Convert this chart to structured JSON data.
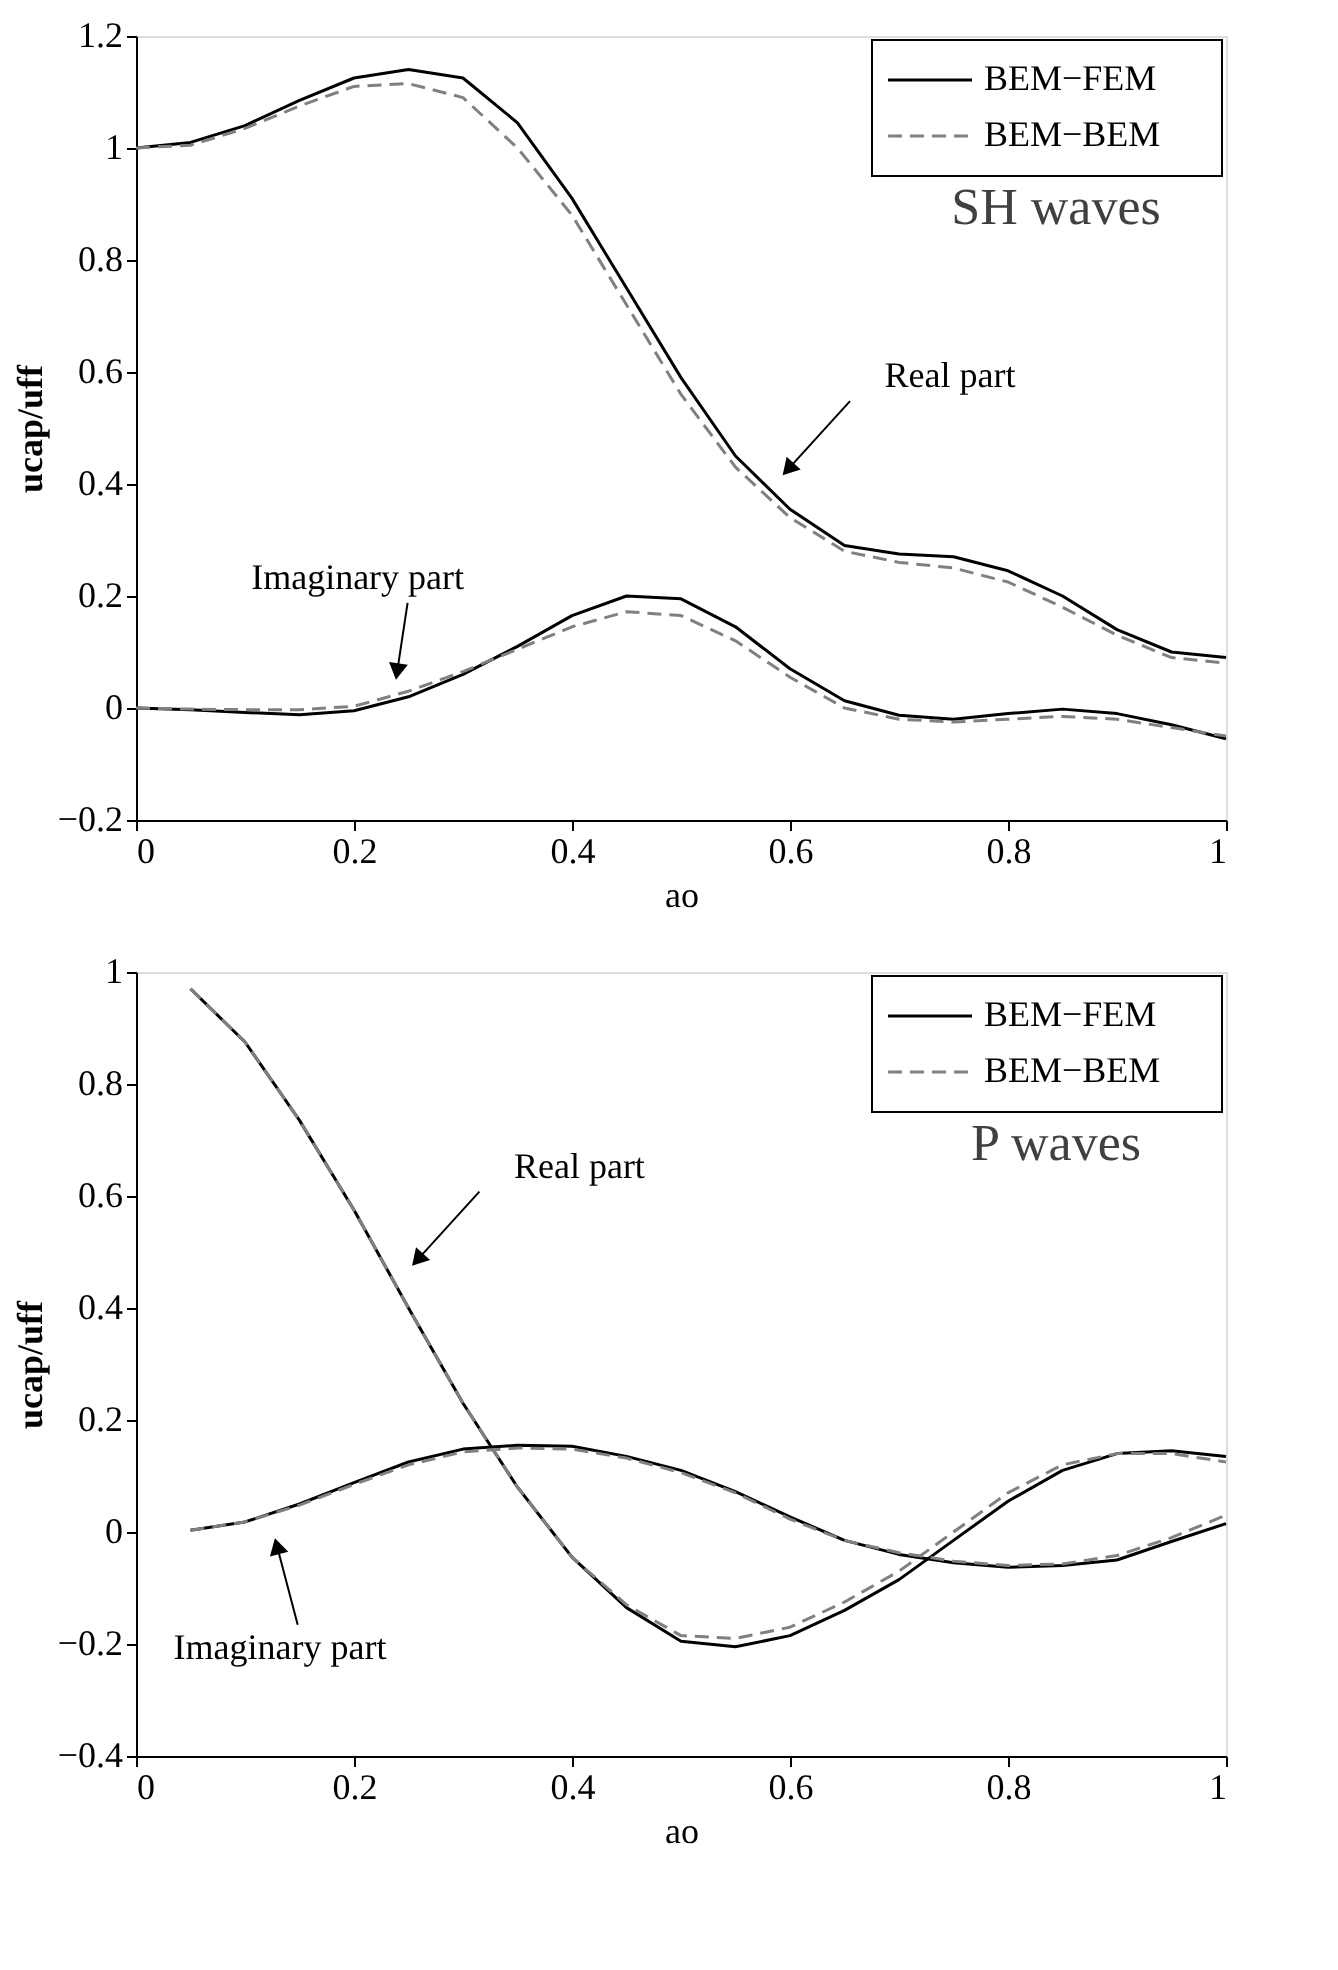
{
  "chart_data": [
    {
      "type": "line",
      "xlabel": "ao",
      "ylabel": "ucap/uff",
      "xlim": [
        0,
        1
      ],
      "ylim": [
        -0.2,
        1.2
      ],
      "xticks": [
        0,
        0.2,
        0.4,
        0.6,
        0.8,
        1
      ],
      "yticks": [
        -0.2,
        0,
        0.2,
        0.4,
        0.6,
        0.8,
        1,
        1.2
      ],
      "grid": false,
      "legend": "top right",
      "x": [
        0,
        0.05,
        0.1,
        0.15,
        0.2,
        0.25,
        0.3,
        0.35,
        0.4,
        0.45,
        0.5,
        0.55,
        0.6,
        0.65,
        0.7,
        0.75,
        0.8,
        0.85,
        0.9,
        0.95,
        1
      ],
      "series": [
        {
          "name": "BEM−FEM",
          "color": "#000000",
          "line_style": "solid",
          "values": [
            1.0,
            1.01,
            1.04,
            1.085,
            1.125,
            1.14,
            1.125,
            1.045,
            0.91,
            0.75,
            0.59,
            0.45,
            0.355,
            0.29,
            0.275,
            0.27,
            0.245,
            0.2,
            0.14,
            0.1,
            0.09
          ]
        },
        {
          "name": "BEM−BEM",
          "color": "#808080",
          "line_style": "dashed",
          "values": [
            1.0,
            1.005,
            1.035,
            1.075,
            1.11,
            1.115,
            1.09,
            1.0,
            0.88,
            0.72,
            0.56,
            0.43,
            0.34,
            0.28,
            0.26,
            0.25,
            0.225,
            0.18,
            0.13,
            0.09,
            0.08
          ]
        },
        {
          "color": "#000000",
          "line_style": "solid",
          "values": [
            0,
            -0.003,
            -0.008,
            -0.012,
            -0.005,
            0.02,
            0.06,
            0.11,
            0.165,
            0.2,
            0.195,
            0.145,
            0.07,
            0.013,
            -0.013,
            -0.02,
            -0.01,
            -0.002,
            -0.01,
            -0.03,
            -0.055
          ]
        },
        {
          "color": "#808080",
          "line_style": "dashed",
          "values": [
            0,
            -0.002,
            -0.003,
            -0.003,
            0.003,
            0.03,
            0.065,
            0.105,
            0.145,
            0.172,
            0.165,
            0.12,
            0.055,
            0.0,
            -0.02,
            -0.025,
            -0.02,
            -0.015,
            -0.02,
            -0.035,
            -0.05
          ]
        }
      ],
      "annotations": [
        {
          "text": "Real part",
          "x": 0.6,
          "y": 0.43
        },
        {
          "text": "Imaginary part",
          "x": 0.24,
          "y": 0.07
        },
        "SH waves"
      ]
    },
    {
      "type": "line",
      "xlabel": "ao",
      "ylabel": "ucap/uff",
      "xlim": [
        0,
        1
      ],
      "ylim": [
        -0.4,
        1
      ],
      "xticks": [
        0,
        0.2,
        0.4,
        0.6,
        0.8,
        1
      ],
      "yticks": [
        -0.4,
        -0.2,
        0,
        0.2,
        0.4,
        0.6,
        0.8,
        1
      ],
      "grid": false,
      "legend": "top right",
      "x": [
        0.05,
        0.1,
        0.15,
        0.2,
        0.25,
        0.3,
        0.35,
        0.4,
        0.45,
        0.5,
        0.55,
        0.6,
        0.65,
        0.7,
        0.75,
        0.8,
        0.85,
        0.9,
        0.95,
        1
      ],
      "series": [
        {
          "name": "BEM−FEM",
          "color": "#000000",
          "line_style": "solid",
          "values": [
            0.97,
            0.875,
            0.735,
            0.575,
            0.4,
            0.23,
            0.08,
            -0.045,
            -0.135,
            -0.195,
            -0.205,
            -0.185,
            -0.14,
            -0.085,
            -0.015,
            0.055,
            0.11,
            0.14,
            0.145,
            0.135
          ]
        },
        {
          "name": "BEM−BEM",
          "color": "#808080",
          "line_style": "dashed",
          "values": [
            0.97,
            0.875,
            0.735,
            0.575,
            0.4,
            0.23,
            0.08,
            -0.045,
            -0.13,
            -0.185,
            -0.19,
            -0.17,
            -0.125,
            -0.07,
            0.0,
            0.07,
            0.12,
            0.14,
            0.14,
            0.125
          ]
        },
        {
          "color": "#000000",
          "line_style": "solid",
          "values": [
            0.003,
            0.018,
            0.05,
            0.088,
            0.125,
            0.148,
            0.155,
            0.153,
            0.135,
            0.11,
            0.072,
            0.027,
            -0.015,
            -0.04,
            -0.055,
            -0.063,
            -0.06,
            -0.05,
            -0.017,
            0.015
          ]
        },
        {
          "color": "#808080",
          "line_style": "dashed",
          "values": [
            0.003,
            0.018,
            0.048,
            0.085,
            0.12,
            0.143,
            0.15,
            0.148,
            0.132,
            0.106,
            0.07,
            0.023,
            -0.015,
            -0.037,
            -0.052,
            -0.06,
            -0.057,
            -0.042,
            -0.01,
            0.03
          ]
        }
      ],
      "annotations": [
        {
          "text": "Real part",
          "x": 0.26,
          "y": 0.49
        },
        {
          "text": "Imaginary part",
          "x": 0.13,
          "y": -0.03
        },
        "P waves"
      ]
    }
  ]
}
